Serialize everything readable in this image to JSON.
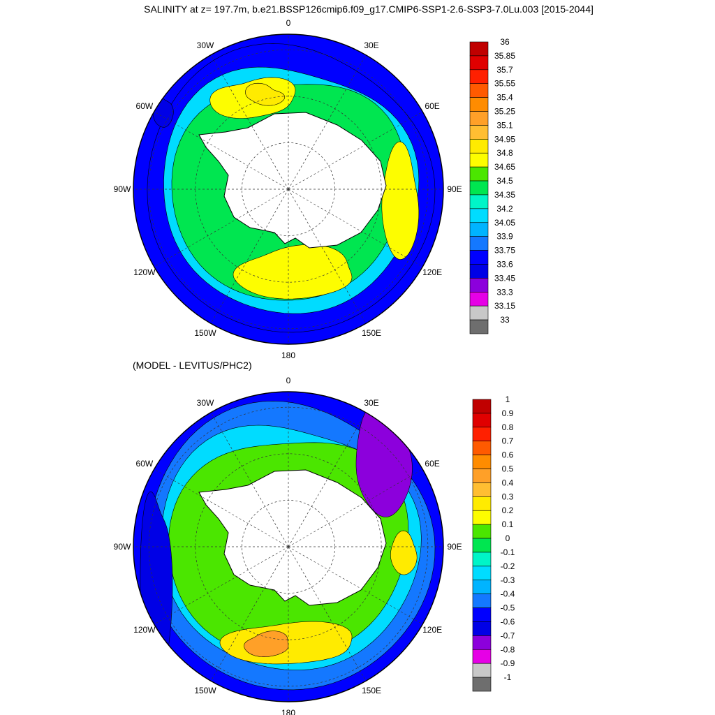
{
  "figure": {
    "title": "SALINITY at z= 197.7m, b.e21.BSSP126cmip6.f09_g17.CMIP6-SSP1-2.6-SSP3-7.0Lu.003 [2015-2044]",
    "subtitle": "(MODEL - LEVITUS/PHC2)"
  },
  "chart_data": [
    {
      "type": "heatmap",
      "projection": "south polar stereographic",
      "title": "SALINITY at z= 197.7m, b.e21.BSSP126cmip6.f09_g17.CMIP6-SSP1-2.6-SSP3-7.0Lu.003 [2015-2044]",
      "longitude_labels": [
        "0",
        "30E",
        "60E",
        "90E",
        "120E",
        "150E",
        "180",
        "150W",
        "120W",
        "90W",
        "60W",
        "30W"
      ],
      "colorbar_levels": [
        "36",
        "35.85",
        "35.7",
        "35.55",
        "35.4",
        "35.25",
        "35.1",
        "34.95",
        "34.8",
        "34.65",
        "34.5",
        "34.35",
        "34.2",
        "34.05",
        "33.9",
        "33.75",
        "33.6",
        "33.45",
        "33.3",
        "33.15",
        "33"
      ],
      "colorbar_colors": [
        "#c00000",
        "#e00000",
        "#ff2000",
        "#ff5a00",
        "#ff8c00",
        "#ffa028",
        "#ffbe32",
        "#ffeb00",
        "#fdfd00",
        "#4be600",
        "#00e650",
        "#00f5c8",
        "#00dcff",
        "#00b4ff",
        "#1478ff",
        "#0000ff",
        "#0000e6",
        "#8c00dc",
        "#e600e6",
        "#c8c8c8",
        "#6e6e6e"
      ],
      "zones": [
        {
          "region": "outer ring",
          "approx_value": 33.7
        },
        {
          "region": "frontal belt",
          "approx_value": 34.1
        },
        {
          "region": "inner belt",
          "approx_value": 34.4
        },
        {
          "region": "Weddell / Ross / Indian sector",
          "approx_value": 34.7
        },
        {
          "region": "Weddell core",
          "approx_value": 34.9
        },
        {
          "region": "Chile coast",
          "approx_value": 33.5
        }
      ]
    },
    {
      "type": "heatmap",
      "projection": "south polar stereographic",
      "title": "(MODEL - LEVITUS/PHC2)",
      "longitude_labels": [
        "0",
        "30E",
        "60E",
        "90E",
        "120E",
        "150E",
        "180",
        "150W",
        "120W",
        "90W",
        "60W",
        "30W"
      ],
      "colorbar_levels": [
        "1",
        "0.9",
        "0.8",
        "0.7",
        "0.6",
        "0.5",
        "0.4",
        "0.3",
        "0.2",
        "0.1",
        "0",
        "-0.1",
        "-0.2",
        "-0.3",
        "-0.4",
        "-0.5",
        "-0.6",
        "-0.7",
        "-0.8",
        "-0.9",
        "-1"
      ],
      "colorbar_colors": [
        "#c00000",
        "#e00000",
        "#ff2000",
        "#ff5a00",
        "#ff8c00",
        "#ffa028",
        "#ffbe32",
        "#ffeb00",
        "#fdfd00",
        "#4be600",
        "#00e650",
        "#00f5c8",
        "#00dcff",
        "#00b4ff",
        "#1478ff",
        "#0000ff",
        "#0000e6",
        "#8c00dc",
        "#e600e6",
        "#c8c8c8",
        "#6e6e6e"
      ],
      "zones": [
        {
          "region": "outer ring",
          "approx_value": -0.45
        },
        {
          "region": "frontal belt",
          "approx_value": -0.25
        },
        {
          "region": "inner belt",
          "approx_value": 0.05
        },
        {
          "region": "Ross Sea band",
          "approx_value": 0.25
        },
        {
          "region": "Ross Sea core",
          "approx_value": 0.45
        },
        {
          "region": "Indian sector anomaly",
          "approx_value": -0.75
        },
        {
          "region": "Pacific sector anomaly",
          "approx_value": -0.65
        }
      ]
    }
  ]
}
